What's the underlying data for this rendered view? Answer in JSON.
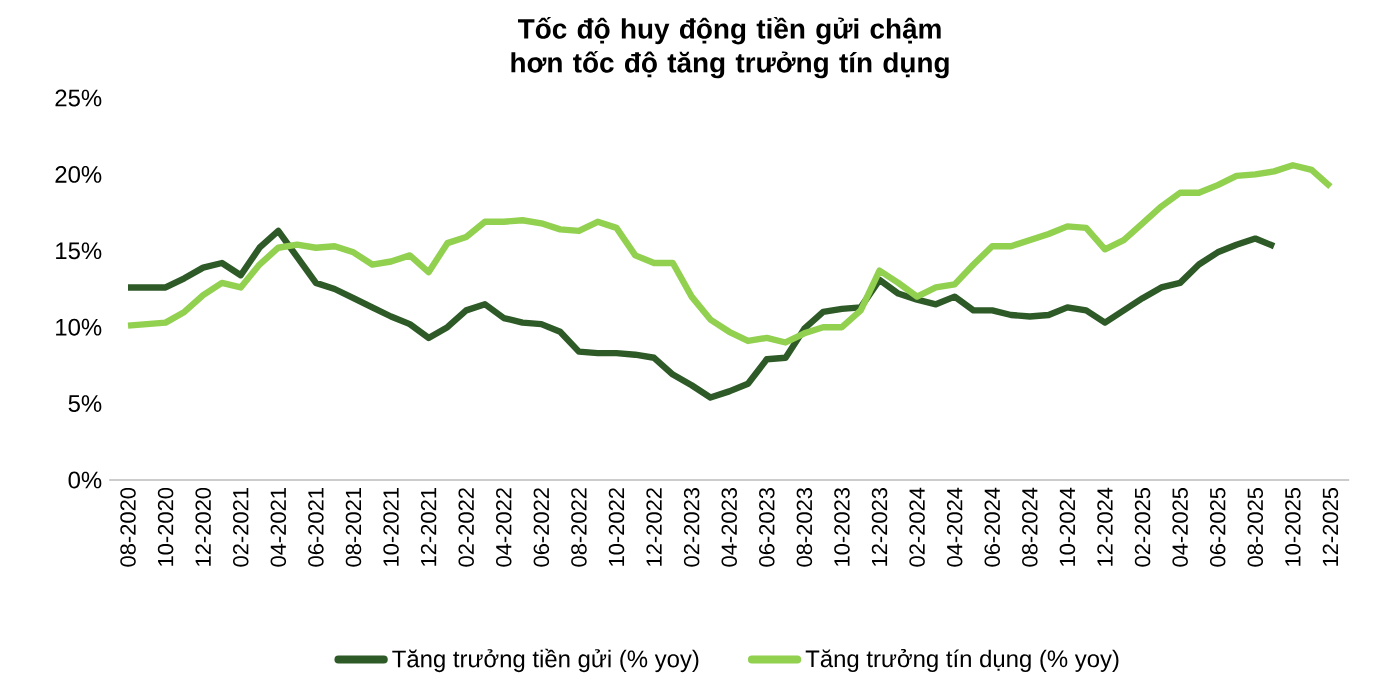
{
  "chart_data": {
    "type": "line",
    "title": "Tốc độ huy động tiền gửi chậm hơn tốc độ tăng trưởng tín dụng",
    "categories": [
      "08-2020",
      null,
      "10-2020",
      null,
      "12-2020",
      null,
      "02-2021",
      null,
      "04-2021",
      null,
      "06-2021",
      null,
      "08-2021",
      null,
      "10-2021",
      null,
      "12-2021",
      null,
      "02-2022",
      null,
      "04-2022",
      null,
      "06-2022",
      null,
      "08-2022",
      null,
      "10-2022",
      null,
      "12-2022",
      null,
      "02-2023",
      null,
      "04-2023",
      null,
      "06-2023",
      null,
      "08-2023",
      null,
      "10-2023",
      null,
      "12-2023",
      null,
      "02-2024",
      null,
      "04-2024",
      null,
      "06-2024",
      null,
      "08-2024",
      null,
      "10-2024",
      null,
      "12-2024",
      null,
      "02-2025",
      null,
      "04-2025",
      null,
      "06-2025",
      null,
      "08-2025",
      null,
      "10-2025",
      null,
      "12-2025"
    ],
    "series": [
      {
        "name": "Tăng trưởng tiền gửi (% yoy)",
        "color": "#2e5a27",
        "values": [
          12.6,
          12.6,
          12.6,
          13.2,
          13.9,
          14.2,
          13.4,
          15.2,
          16.3,
          14.6,
          12.9,
          12.5,
          11.9,
          11.3,
          10.7,
          10.2,
          9.3,
          10.0,
          11.1,
          11.5,
          10.6,
          10.3,
          10.2,
          9.7,
          8.4,
          8.3,
          8.3,
          8.2,
          8.0,
          6.9,
          6.2,
          5.4,
          5.8,
          6.3,
          7.9,
          8.0,
          9.9,
          11.0,
          11.2,
          11.3,
          13.1,
          12.2,
          11.8,
          11.5,
          12.0,
          11.1,
          11.1,
          10.8,
          10.7,
          10.8,
          11.3,
          11.1,
          10.3,
          11.1,
          11.9,
          12.6,
          12.9,
          14.1,
          14.9,
          15.4,
          15.8,
          15.3,
          null,
          null,
          null
        ]
      },
      {
        "name": "Tăng trưởng tín dụng (% yoy)",
        "color": "#92d050",
        "values": [
          10.1,
          10.2,
          10.3,
          11.0,
          12.1,
          12.9,
          12.6,
          14.1,
          15.2,
          15.4,
          15.2,
          15.3,
          14.9,
          14.1,
          14.3,
          14.7,
          13.6,
          15.5,
          15.9,
          16.9,
          16.9,
          17.0,
          16.8,
          16.4,
          16.3,
          16.9,
          16.5,
          14.7,
          14.2,
          14.2,
          12.0,
          10.5,
          9.7,
          9.1,
          9.3,
          9.0,
          9.6,
          10.0,
          10.0,
          11.1,
          13.7,
          12.9,
          12.0,
          12.6,
          12.8,
          14.1,
          15.3,
          15.3,
          15.7,
          16.1,
          16.6,
          16.5,
          15.1,
          15.7,
          16.8,
          17.9,
          18.8,
          18.8,
          19.3,
          19.9,
          20.0,
          20.2,
          20.6,
          20.3,
          19.2
        ]
      }
    ],
    "ylim": [
      0,
      25
    ],
    "yticks": [
      {
        "value": 0,
        "label": "0%"
      },
      {
        "value": 5,
        "label": "5%"
      },
      {
        "value": 10,
        "label": "10%"
      },
      {
        "value": 15,
        "label": "15%"
      },
      {
        "value": 20,
        "label": "20%"
      },
      {
        "value": 25,
        "label": "25%"
      }
    ],
    "legend": "bottom",
    "line_style": "solid",
    "marker": "none"
  }
}
